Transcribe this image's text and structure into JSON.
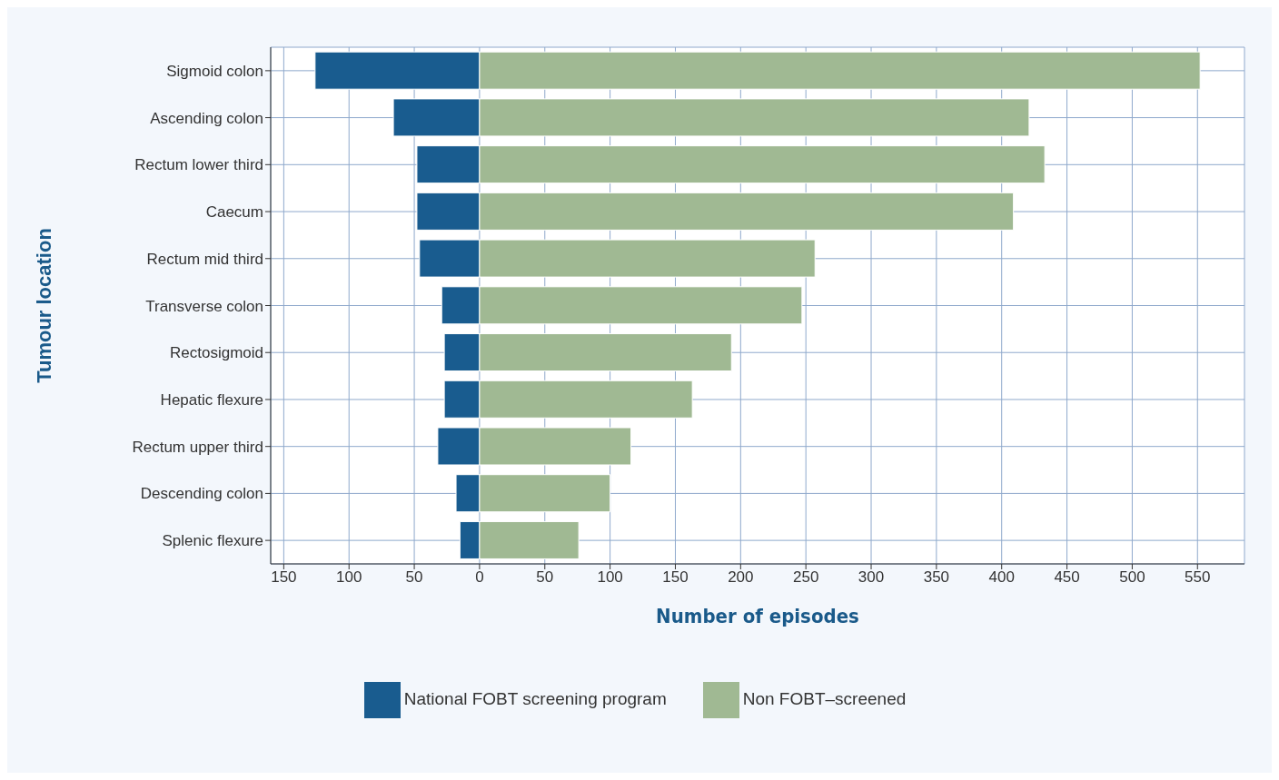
{
  "chart_data": {
    "type": "bar",
    "orientation": "horizontal",
    "stacked": true,
    "xlabel": "Number of episodes",
    "ylabel": "Tumour location",
    "categories": [
      "Sigmoid colon",
      "Ascending colon",
      "Rectum lower third",
      "Caecum",
      "Rectum mid third",
      "Transverse colon",
      "Rectosigmoid",
      "Hepatic flexure",
      "Rectum upper third",
      "Descending colon",
      "Splenic flexure"
    ],
    "series": [
      {
        "name": "National FOBT screening program",
        "color": "#195c8f",
        "values": [
          -126,
          -66,
          -48,
          -48,
          -46,
          -29,
          -27,
          -27,
          -32,
          -18,
          -15
        ]
      },
      {
        "name": "Non FOBT–screened",
        "color": "#a0b993",
        "values": [
          552,
          421,
          433,
          409,
          257,
          247,
          193,
          163,
          116,
          100,
          76
        ]
      }
    ],
    "xlim": [
      -160,
      586
    ],
    "xticks": [
      {
        "value": -150,
        "label": "150"
      },
      {
        "value": -100,
        "label": "100"
      },
      {
        "value": -50,
        "label": "50"
      },
      0,
      50,
      100,
      150,
      200,
      250,
      300,
      350,
      400,
      450,
      500,
      550
    ],
    "grid": true,
    "legend": "bottom"
  }
}
